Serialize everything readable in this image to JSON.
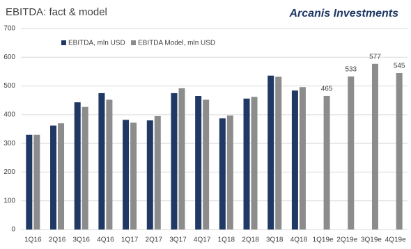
{
  "chart_data": {
    "type": "bar",
    "title": "EBITDA: fact & model",
    "brand": "Arcanis Investments",
    "categories": [
      "1Q16",
      "2Q16",
      "3Q16",
      "4Q16",
      "1Q17",
      "2Q17",
      "3Q17",
      "4Q17",
      "1Q18",
      "2Q18",
      "3Q18",
      "4Q18",
      "1Q19e",
      "2Q19e",
      "3Q19e",
      "4Q19e"
    ],
    "series": [
      {
        "name": "EBITDA, mln USD",
        "color": "#1f3864",
        "values": [
          330,
          362,
          443,
          475,
          382,
          380,
          475,
          465,
          387,
          456,
          536,
          484,
          null,
          null,
          null,
          null
        ]
      },
      {
        "name": "EBITDA Model, mln USD",
        "color": "#8c8c8c",
        "values": [
          330,
          370,
          427,
          452,
          372,
          395,
          492,
          452,
          397,
          462,
          532,
          496,
          465,
          533,
          577,
          545
        ],
        "value_labels": [
          null,
          null,
          null,
          null,
          null,
          null,
          null,
          null,
          null,
          null,
          null,
          null,
          "465",
          "533",
          "577",
          "545"
        ]
      }
    ],
    "ylim": [
      0,
      700
    ],
    "yticks": [
      0,
      100,
      200,
      300,
      400,
      500,
      600,
      700
    ],
    "grid": true,
    "legend": "top"
  }
}
